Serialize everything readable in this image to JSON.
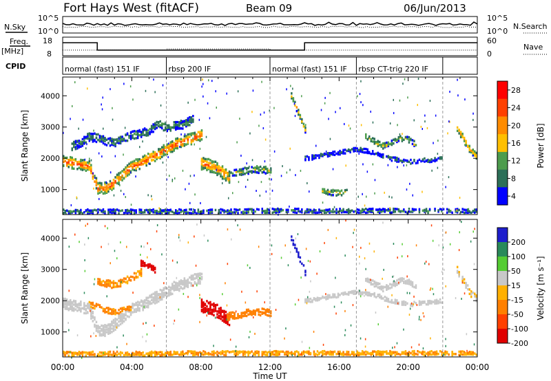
{
  "header": {
    "radar": "Fort Hays West (fitACF)",
    "beam": "Beam 09",
    "date": "06/Jun/2013"
  },
  "summary_panels": {
    "nsky_label": "N.Sky",
    "nsky_ticks": [
      "10^5",
      "10^0"
    ],
    "nsearch_label": "N.Search",
    "nsearch_ticks": [
      "10^5",
      "10^0"
    ],
    "freq_label": "Freq.",
    "freq_unit": "[MHz]",
    "freq_ticks": [
      "18",
      "8"
    ],
    "nave_label": "Nave",
    "nave_ticks": [
      "60",
      "0"
    ],
    "cpid_label": "CPID",
    "cpid_segments": [
      {
        "label": "normal (fast) 151 IF",
        "start_h": 0,
        "end_h": 6
      },
      {
        "label": "rbsp 200 IF",
        "start_h": 6,
        "end_h": 12
      },
      {
        "label": "normal (fast) 151 IF",
        "start_h": 12,
        "end_h": 17
      },
      {
        "label": "rbsp CT-trig 220 IF",
        "start_h": 17,
        "end_h": 22
      },
      {
        "label": "",
        "start_h": 22,
        "end_h": 24
      }
    ]
  },
  "chart_data": [
    {
      "type": "heatmap",
      "panel": "power",
      "xlabel": "",
      "ylabel": "Slant Range [km]",
      "ylim": [
        200,
        4600
      ],
      "yticks": [
        "4000",
        "3000",
        "2000",
        "1000"
      ],
      "colorbar_label": "Power [dB]",
      "colorbar_ticks": [
        "28",
        "24",
        "20",
        "16",
        "12",
        "8",
        "4"
      ],
      "colorbar_colors": [
        "#ff0000",
        "#ff4000",
        "#ff8c00",
        "#ffbf00",
        "#4d9c4d",
        "#2c6f58",
        "#0000ff"
      ],
      "clim": [
        0,
        30
      ],
      "bands": [
        {
          "t": [
            0.0,
            0.5,
            1.0,
            1.5,
            2.0,
            2.5,
            3.0,
            3.5,
            4.0,
            4.5,
            5.0,
            5.5,
            6.0,
            6.5,
            7.0,
            7.5,
            8.0
          ],
          "r": [
            1900,
            1850,
            1800,
            1750,
            1050,
            1050,
            1250,
            1500,
            1750,
            1850,
            2000,
            2150,
            2300,
            2450,
            2550,
            2650,
            2750
          ],
          "w": 320,
          "p": 22
        },
        {
          "t": [
            0.5,
            1.0,
            1.5,
            2.0,
            2.5,
            3.0,
            3.5,
            4.0,
            4.5,
            5.0,
            5.5,
            6.0,
            6.5,
            7.0,
            7.5
          ],
          "r": [
            2400,
            2500,
            2700,
            2650,
            2550,
            2500,
            2650,
            2750,
            2800,
            2900,
            3100,
            3000,
            3050,
            3100,
            3250
          ],
          "w": 250,
          "p": 9
        },
        {
          "t": [
            8.0,
            8.3,
            8.6,
            9.0,
            9.3,
            9.6
          ],
          "r": [
            1850,
            1800,
            1750,
            1650,
            1500,
            1400
          ],
          "w": 380,
          "p": 20
        },
        {
          "t": [
            9.5,
            10.0,
            10.5,
            11.0,
            11.5,
            12.0
          ],
          "r": [
            1500,
            1550,
            1600,
            1650,
            1650,
            1600
          ],
          "w": 200,
          "p": 13
        },
        {
          "t": [
            13.2,
            13.5,
            13.8,
            14.0
          ],
          "r": [
            4000,
            3600,
            3200,
            2900
          ],
          "w": 150,
          "p": 17
        },
        {
          "t": [
            14.0,
            15.0,
            16.0,
            17.0,
            18.0,
            19.0,
            20.0,
            21.0,
            22.0
          ],
          "r": [
            2000,
            2100,
            2200,
            2300,
            2200,
            2000,
            1900,
            1950,
            2000
          ],
          "w": 120,
          "p": 7
        },
        {
          "t": [
            15.0,
            15.5,
            16.0,
            16.5
          ],
          "r": [
            950,
            920,
            900,
            950
          ],
          "w": 160,
          "p": 14
        },
        {
          "t": [
            17.5,
            18.0,
            18.5,
            19.0,
            19.5,
            20.0,
            20.5
          ],
          "r": [
            2700,
            2550,
            2400,
            2500,
            2650,
            2600,
            2400
          ],
          "w": 150,
          "p": 14
        },
        {
          "t": [
            22.8,
            23.2,
            23.6,
            24.0
          ],
          "r": [
            3000,
            2600,
            2250,
            2050
          ],
          "w": 220,
          "p": 18
        },
        {
          "t": [
            0.0,
            3.0,
            6.0,
            9.0,
            12.0,
            15.0,
            18.0,
            21.0,
            24.0
          ],
          "r": [
            300,
            300,
            300,
            300,
            320,
            320,
            320,
            320,
            320
          ],
          "w": 90,
          "p": 10
        }
      ]
    },
    {
      "type": "heatmap",
      "panel": "velocity",
      "xlabel": "Time UT",
      "ylabel": "Slant Range [km]",
      "ylim": [
        200,
        4600
      ],
      "yticks": [
        "4000",
        "3000",
        "2000",
        "1000"
      ],
      "xticks": [
        "00:00",
        "04:00",
        "08:00",
        "12:00",
        "16:00",
        "20:00",
        "00:00"
      ],
      "colorbar_label": "Velocity [m s⁻¹]",
      "colorbar_ticks": [
        "200",
        "100",
        "50",
        "15",
        "-15",
        "-50",
        "-100",
        "-200"
      ],
      "colorbar_colors": [
        "#1e1ecc",
        "#2a8a5a",
        "#55cc33",
        "#c8c8c8",
        "#ffb000",
        "#ff8000",
        "#ff4000",
        "#e00000"
      ],
      "clim": [
        -250,
        250
      ],
      "bands": [
        {
          "t": [
            0.0,
            0.5,
            1.0,
            1.5,
            2.0,
            2.5,
            3.0,
            3.5,
            4.0,
            4.5,
            5.0,
            5.5,
            6.0,
            6.5,
            7.0,
            7.5,
            8.0
          ],
          "r": [
            1900,
            1850,
            1800,
            1750,
            1050,
            1050,
            1250,
            1500,
            1750,
            1850,
            2000,
            2150,
            2300,
            2450,
            2550,
            2650,
            2750
          ],
          "w": 320,
          "v": 0
        },
        {
          "t": [
            1.5,
            2.0,
            2.5,
            3.0,
            3.5,
            4.0
          ],
          "r": [
            1900,
            1800,
            1700,
            1650,
            1700,
            1800
          ],
          "w": 150,
          "v": -45
        },
        {
          "t": [
            2.0,
            2.5,
            3.0,
            3.5,
            4.0,
            4.5
          ],
          "r": [
            2600,
            2550,
            2500,
            2600,
            2750,
            2900
          ],
          "w": 180,
          "v": -40
        },
        {
          "t": [
            4.5,
            5.0,
            5.3
          ],
          "r": [
            3200,
            3100,
            3000
          ],
          "w": 150,
          "v": -180
        },
        {
          "t": [
            8.0,
            8.3,
            8.6,
            9.0,
            9.3,
            9.6
          ],
          "r": [
            1850,
            1800,
            1750,
            1650,
            1500,
            1400
          ],
          "w": 380,
          "v": -210
        },
        {
          "t": [
            9.5,
            10.0,
            10.5,
            11.0,
            11.5,
            12.0
          ],
          "r": [
            1500,
            1550,
            1600,
            1650,
            1650,
            1600
          ],
          "w": 200,
          "v": -60
        },
        {
          "t": [
            13.2,
            13.5,
            13.8,
            14.0
          ],
          "r": [
            4000,
            3600,
            3200,
            2900
          ],
          "w": 150,
          "v": 210
        },
        {
          "t": [
            14.0,
            15.0,
            16.0,
            17.0,
            18.0,
            19.0,
            20.0,
            21.0,
            22.0
          ],
          "r": [
            2000,
            2100,
            2200,
            2300,
            2200,
            2000,
            1900,
            1950,
            2000
          ],
          "w": 120,
          "v": 0
        },
        {
          "t": [
            17.5,
            18.0,
            18.5,
            19.0,
            19.5,
            20.0,
            20.5
          ],
          "r": [
            2700,
            2550,
            2400,
            2500,
            2650,
            2600,
            2400
          ],
          "w": 150,
          "v": 0
        },
        {
          "t": [
            22.8,
            23.2,
            23.6,
            24.0
          ],
          "r": [
            3000,
            2600,
            2250,
            2050
          ],
          "w": 220,
          "v": -10
        },
        {
          "t": [
            0.0,
            4.0,
            8.0,
            12.0,
            16.0,
            20.0,
            24.0
          ],
          "r": [
            300,
            300,
            320,
            320,
            320,
            320,
            320
          ],
          "w": 90,
          "v": -30
        }
      ]
    }
  ],
  "frequency_trace": {
    "segments": [
      {
        "start_h": 0,
        "end_h": 2,
        "mhz": 15
      },
      {
        "start_h": 2,
        "end_h": 14,
        "mhz": 11
      },
      {
        "start_h": 14,
        "end_h": 24,
        "mhz": 15
      }
    ]
  },
  "nave_trace": {
    "segments": [
      {
        "start_h": 0,
        "end_h": 6,
        "value": 18
      },
      {
        "start_h": 6,
        "end_h": 12,
        "value": 22
      },
      {
        "start_h": 12,
        "end_h": 24,
        "value": 18
      }
    ]
  }
}
